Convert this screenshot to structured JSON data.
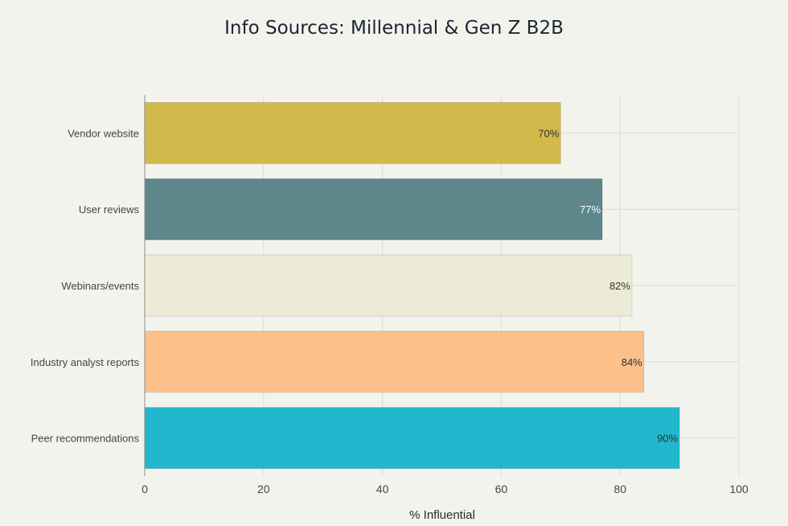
{
  "chart_data": {
    "type": "bar",
    "orientation": "horizontal",
    "title": "Info Sources: Millennial & Gen Z B2B",
    "xlabel": "% Influential",
    "ylabel": "",
    "xlim": [
      0,
      100
    ],
    "xticks": [
      0,
      20,
      40,
      60,
      80,
      100
    ],
    "grid": true,
    "categories": [
      "Vendor website",
      "User reviews",
      "Webinars/events",
      "Industry analyst reports",
      "Peer recommendations"
    ],
    "values": [
      70,
      77,
      82,
      84,
      90
    ],
    "value_labels": [
      "70%",
      "77%",
      "82%",
      "84%",
      "90%"
    ],
    "colors": [
      "#d2b94b",
      "#5e878c",
      "#ecebd5",
      "#fdc08a",
      "#21b7cc"
    ],
    "label_colors": [
      "#333333",
      "#ffffff",
      "#333333",
      "#333333",
      "#333333"
    ]
  }
}
